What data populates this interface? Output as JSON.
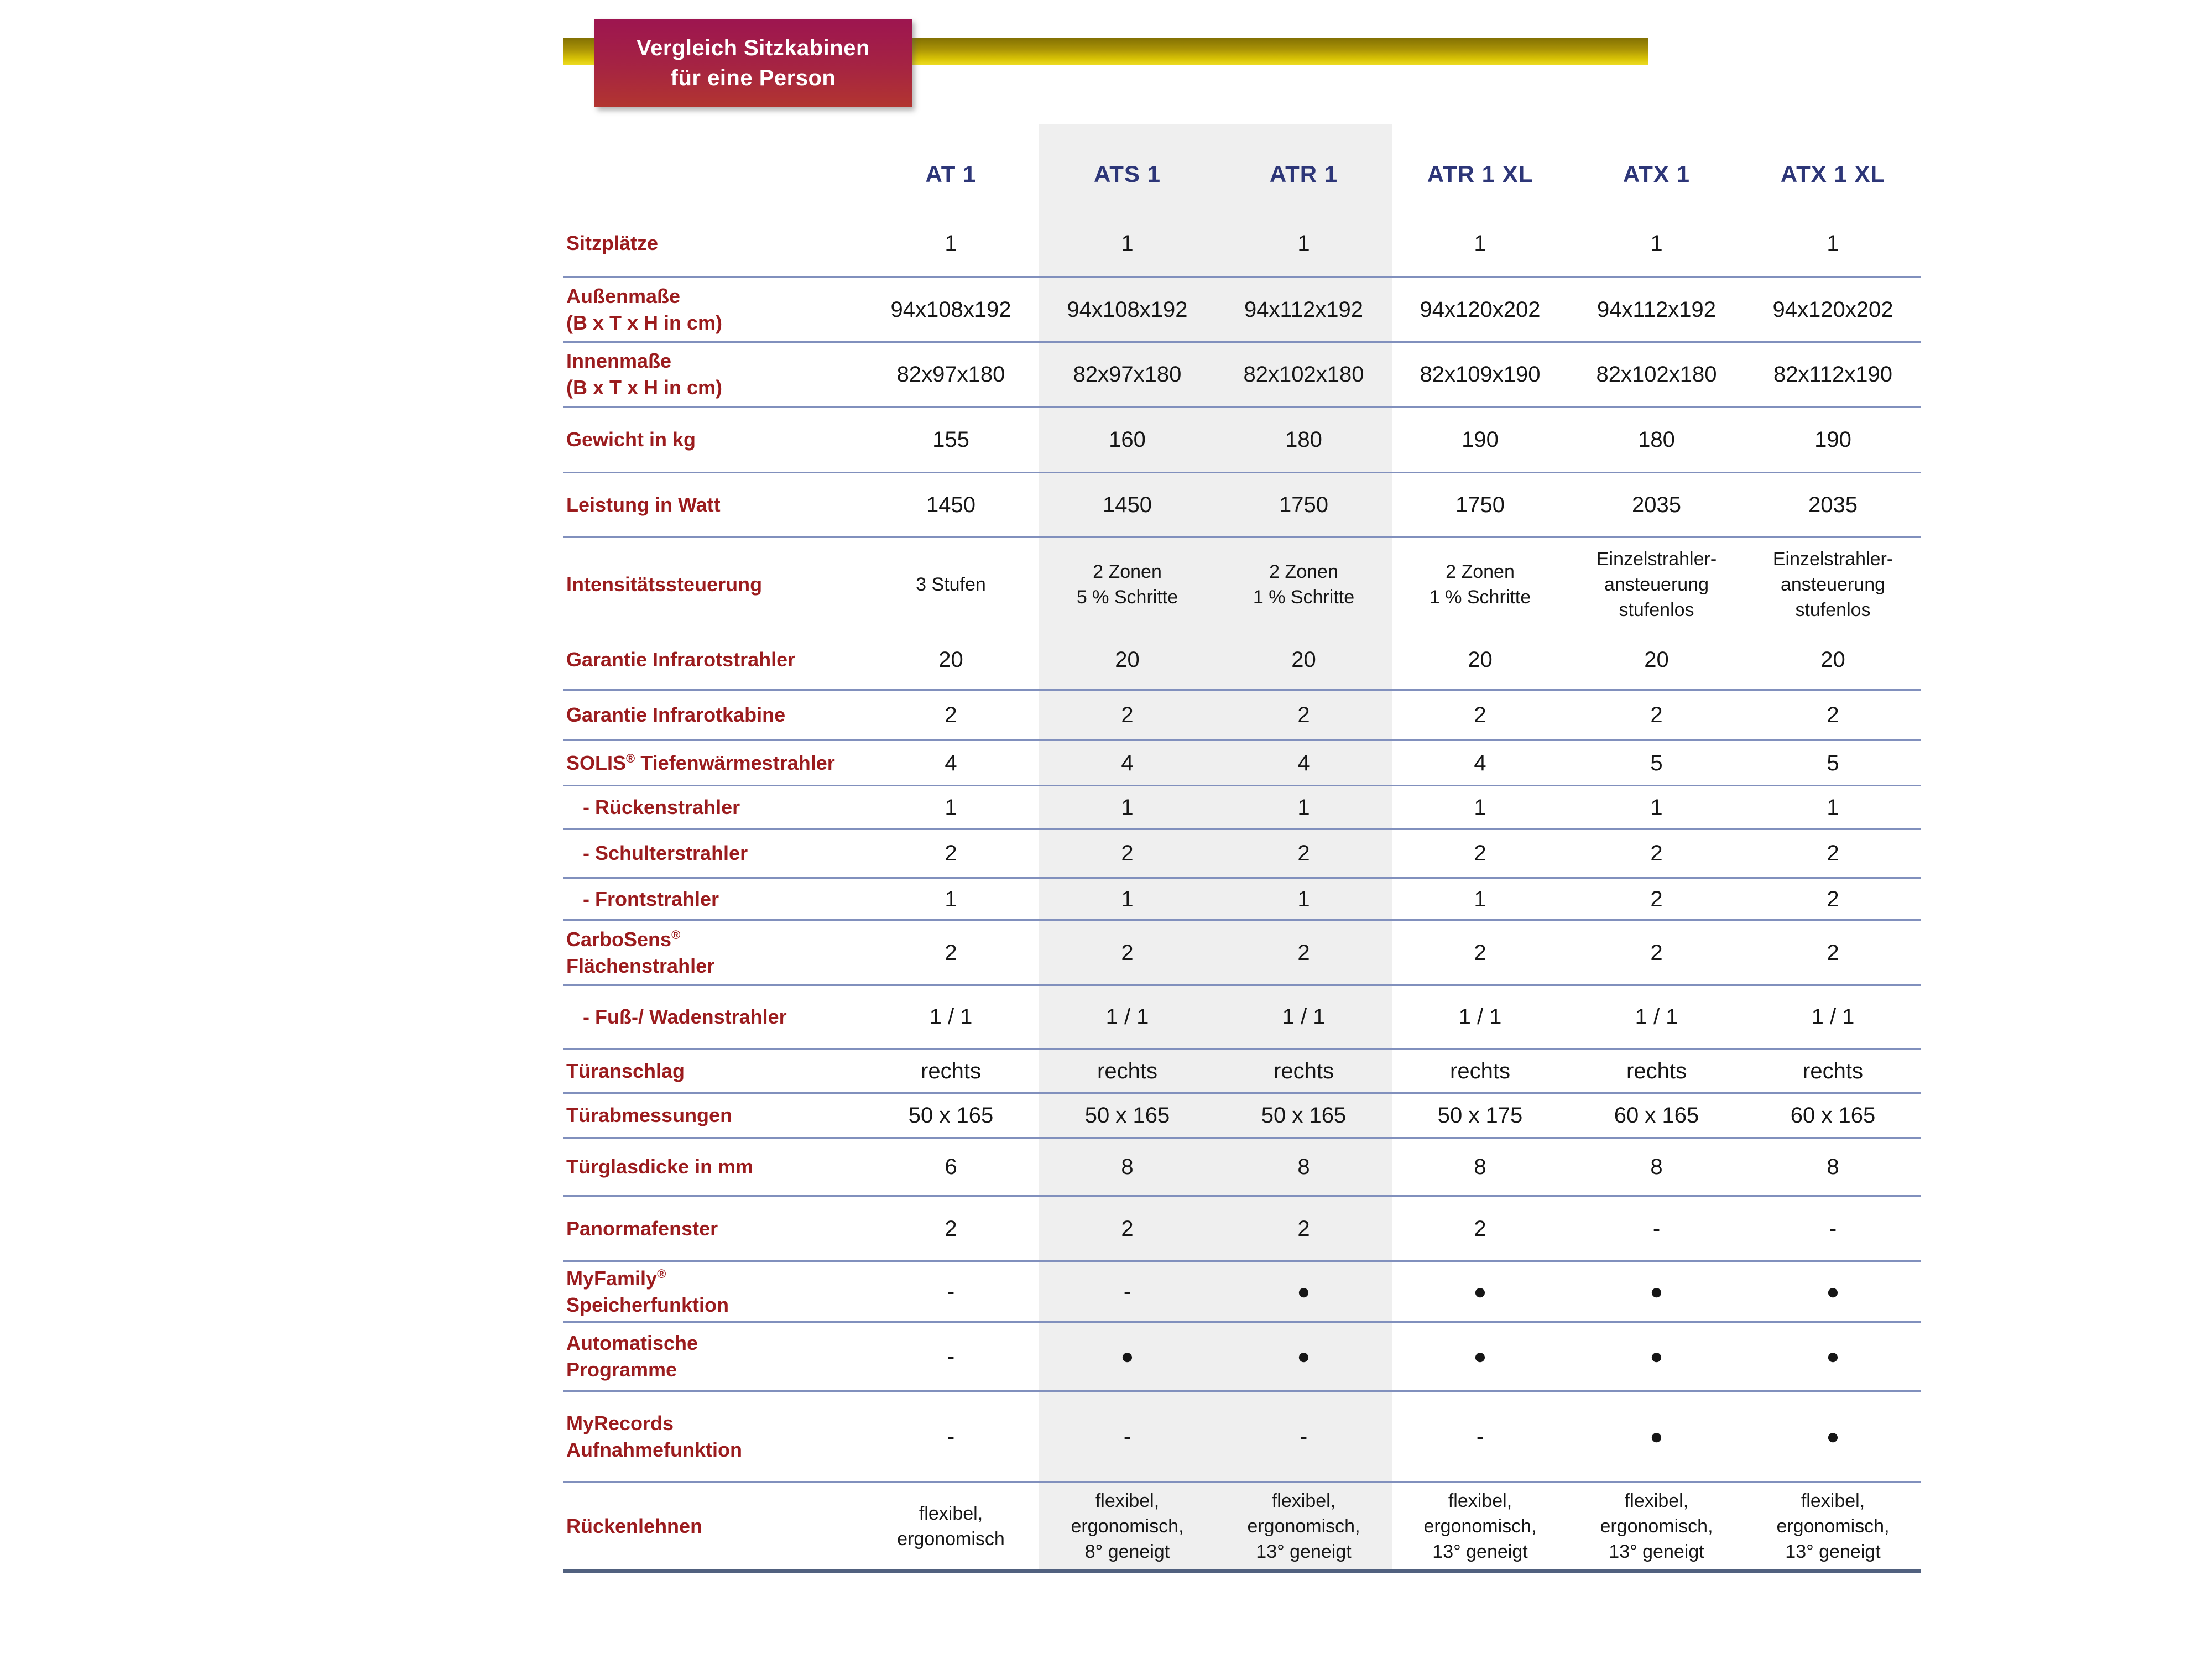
{
  "title": {
    "line1": "Vergleich Sitzkabinen",
    "line2": "für eine Person"
  },
  "columns": [
    "AT 1",
    "ATS 1",
    "ATR 1",
    "ATR 1 XL",
    "ATX 1",
    "ATX 1 XL"
  ],
  "highlighted_columns": [
    "ATS 1",
    "ATR 1"
  ],
  "rows": [
    {
      "id": "sitzplaetze",
      "label_lines": [
        "Sitzplätze"
      ],
      "values": [
        "1",
        "1",
        "1",
        "1",
        "1",
        "1"
      ]
    },
    {
      "id": "aussenmasse",
      "label_lines": [
        "Außenmaße",
        "(B x T x H in cm)"
      ],
      "values": [
        "94x108x192",
        "94x108x192",
        "94x112x192",
        "94x120x202",
        "94x112x192",
        "94x120x202"
      ]
    },
    {
      "id": "innenmasse",
      "label_lines": [
        "Innenmaße",
        "(B x T x H in cm)"
      ],
      "values": [
        "82x97x180",
        "82x97x180",
        "82x102x180",
        "82x109x190",
        "82x102x180",
        "82x112x190"
      ]
    },
    {
      "id": "gewicht",
      "label_lines": [
        "Gewicht in kg"
      ],
      "values": [
        "155",
        "160",
        "180",
        "190",
        "180",
        "190"
      ]
    },
    {
      "id": "leistung",
      "label_lines": [
        "Leistung in Watt"
      ],
      "values": [
        "1450",
        "1450",
        "1750",
        "1750",
        "2035",
        "2035"
      ]
    },
    {
      "id": "intensitaet",
      "label_lines": [
        "Intensitätssteuerung"
      ],
      "values": [
        "3 Stufen",
        "2 Zonen\n5 % Schritte",
        "2 Zonen\n1 % Schritte",
        "2 Zonen\n1 % Schritte",
        "Einzelstrahler-\nansteuerung\nstufenlos",
        "Einzelstrahler-\nansteuerung\nstufenlos"
      ]
    },
    {
      "id": "garantie_strahler",
      "label_lines": [
        "Garantie Infrarotstrahler"
      ],
      "values": [
        "20",
        "20",
        "20",
        "20",
        "20",
        "20"
      ]
    },
    {
      "id": "garantie_kabine",
      "label_lines": [
        "Garantie Infrarotkabine"
      ],
      "values": [
        "2",
        "2",
        "2",
        "2",
        "2",
        "2"
      ]
    },
    {
      "id": "solis",
      "label_lines": [
        "SOLIS® Tiefenwärmestrahler"
      ],
      "values": [
        "4",
        "4",
        "4",
        "4",
        "5",
        "5"
      ]
    },
    {
      "id": "rueckenstrahler",
      "label_lines": [
        "- Rückenstrahler"
      ],
      "values": [
        "1",
        "1",
        "1",
        "1",
        "1",
        "1"
      ]
    },
    {
      "id": "schulterstrahler",
      "label_lines": [
        "- Schulterstrahler"
      ],
      "values": [
        "2",
        "2",
        "2",
        "2",
        "2",
        "2"
      ]
    },
    {
      "id": "frontstrahler",
      "label_lines": [
        "- Frontstrahler"
      ],
      "values": [
        "1",
        "1",
        "1",
        "1",
        "2",
        "2"
      ]
    },
    {
      "id": "carbosens",
      "label_lines": [
        "CarboSens®",
        "Flächenstrahler"
      ],
      "values": [
        "2",
        "2",
        "2",
        "2",
        "2",
        "2"
      ]
    },
    {
      "id": "fusswaden",
      "label_lines": [
        "- Fuß-/ Wadenstrahler"
      ],
      "values": [
        "1 / 1",
        "1 / 1",
        "1 / 1",
        "1 / 1",
        "1 / 1",
        "1 / 1"
      ]
    },
    {
      "id": "tueranschlag",
      "label_lines": [
        "Türanschlag"
      ],
      "values": [
        "rechts",
        "rechts",
        "rechts",
        "rechts",
        "rechts",
        "rechts"
      ]
    },
    {
      "id": "tuerabmessungen",
      "label_lines": [
        "Türabmessungen"
      ],
      "values": [
        "50 x 165",
        "50 x 165",
        "50 x 165",
        "50 x 175",
        "60 x 165",
        "60 x 165"
      ]
    },
    {
      "id": "tuerglasdicke",
      "label_lines": [
        "Türglasdicke in mm"
      ],
      "values": [
        "6",
        "8",
        "8",
        "8",
        "8",
        "8"
      ]
    },
    {
      "id": "panormafenster",
      "label_lines": [
        "Panormafenster"
      ],
      "values": [
        "2",
        "2",
        "2",
        "2",
        "-",
        "-"
      ]
    },
    {
      "id": "myfamily",
      "label_lines": [
        "MyFamily®",
        "Speicherfunktion"
      ],
      "values": [
        "-",
        "-",
        "●",
        "●",
        "●",
        "●"
      ]
    },
    {
      "id": "automatische",
      "label_lines": [
        "Automatische",
        "Programme"
      ],
      "values": [
        "-",
        "●",
        "●",
        "●",
        "●",
        "●"
      ]
    },
    {
      "id": "myrecords",
      "label_lines": [
        "MyRecords",
        "Aufnahmefunktion"
      ],
      "values": [
        "-",
        "-",
        "-",
        "-",
        "●",
        "●"
      ]
    },
    {
      "id": "rueckenlehnen",
      "label_lines": [
        "Rückenlehnen"
      ],
      "values": [
        "flexibel,\nergonomisch",
        "flexibel,\nergonomisch,\n8° geneigt",
        "flexibel,\nergonomisch,\n13° geneigt",
        "flexibel,\nergonomisch,\n13° geneigt",
        "flexibel,\nergonomisch,\n13° geneigt",
        "flexibel,\nergonomisch,\n13° geneigt"
      ]
    }
  ],
  "colors": {
    "label_red": "#9b1c1e",
    "header_blue": "#2d3678",
    "separator_line": "#8190bd",
    "bottom_line": "#51617f",
    "highlight_column_bg": "#efefef",
    "accent_bar_yellow_top": "#837103",
    "accent_bar_yellow_bottom": "#ecdb22",
    "title_box_top": "#9d1550",
    "title_box_bottom": "#b23530"
  }
}
